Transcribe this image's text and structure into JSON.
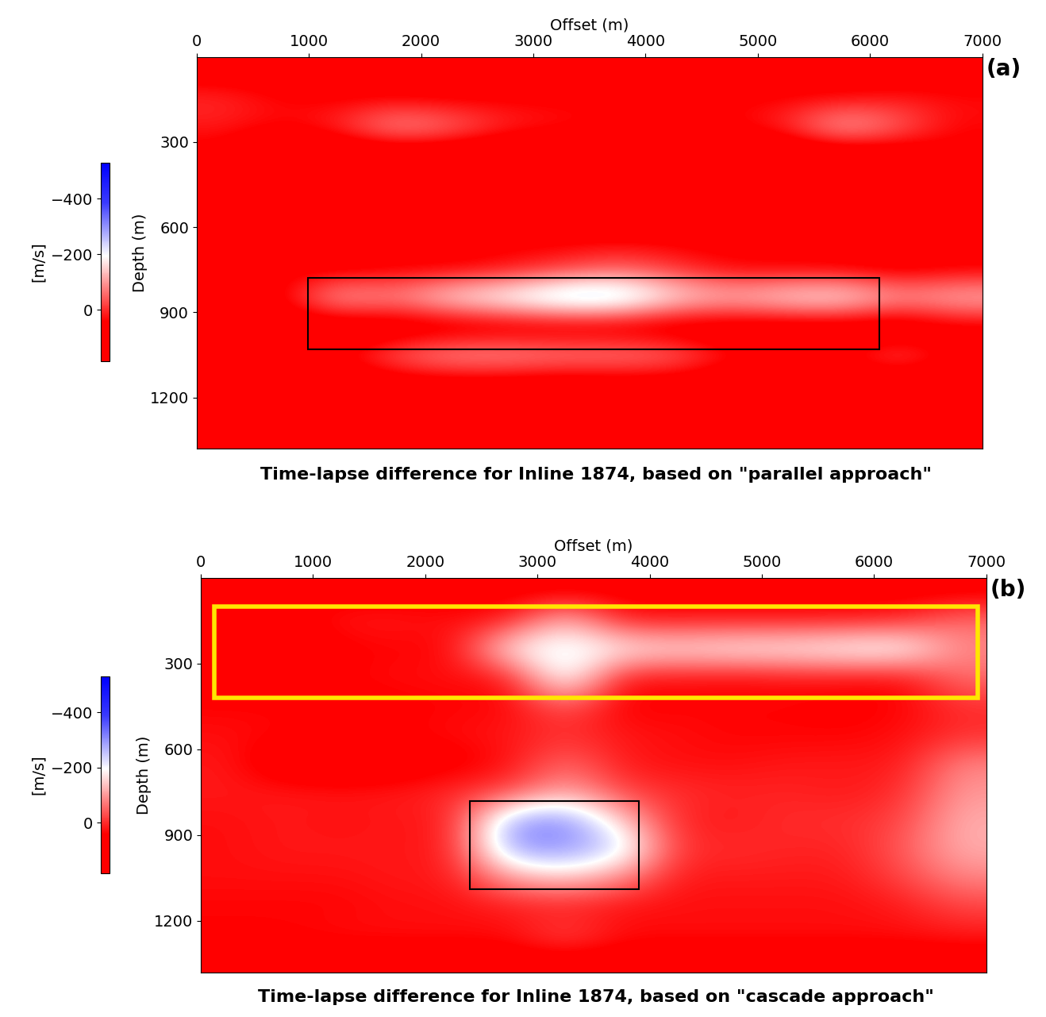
{
  "chart_data": [
    {
      "type": "heatmap",
      "title": "Time-lapse difference for Inline 1874, based on \"parallel approach\"",
      "panel_label": "(a)",
      "xlabel": "Offset (m)",
      "ylabel": "Depth (m)",
      "xlim": [
        0,
        7000
      ],
      "xticks": [
        0,
        1000,
        2000,
        3000,
        4000,
        5000,
        6000,
        7000
      ],
      "ylim": [
        1380,
        0
      ],
      "yticks": [
        300,
        600,
        900,
        1200
      ],
      "x_edges": [
        0,
        500,
        1000,
        1500,
        2000,
        2500,
        3000,
        3500,
        4000,
        4500,
        5000,
        5500,
        6000,
        6500,
        7000
      ],
      "y_edges": [
        0,
        100,
        200,
        300,
        400,
        500,
        600,
        700,
        800,
        900,
        1000,
        1100,
        1200,
        1300,
        1400
      ],
      "cells": [
        [
          80,
          80,
          80,
          80,
          80,
          80,
          80,
          80,
          80,
          80,
          80,
          80,
          80,
          80
        ],
        [
          0,
          40,
          50,
          50,
          60,
          50,
          50,
          50,
          50,
          50,
          40,
          40,
          20,
          30
        ],
        [
          20,
          40,
          0,
          -120,
          -80,
          0,
          20,
          40,
          50,
          40,
          0,
          -150,
          -60,
          40
        ],
        [
          60,
          150,
          150,
          150,
          150,
          150,
          150,
          150,
          150,
          150,
          150,
          150,
          120,
          60
        ],
        [
          80,
          150,
          170,
          170,
          170,
          170,
          170,
          170,
          170,
          170,
          170,
          170,
          150,
          60
        ],
        [
          60,
          120,
          100,
          140,
          140,
          160,
          160,
          170,
          160,
          150,
          140,
          130,
          120,
          60
        ],
        [
          60,
          40,
          80,
          50,
          60,
          40,
          40,
          30,
          40,
          50,
          40,
          60,
          60,
          60
        ],
        [
          80,
          60,
          80,
          60,
          60,
          40,
          0,
          -40,
          0,
          50,
          60,
          60,
          80,
          60
        ],
        [
          80,
          60,
          -150,
          -100,
          -200,
          -250,
          -320,
          -320,
          -200,
          -150,
          -200,
          -220,
          -120,
          -150
        ],
        [
          80,
          100,
          140,
          130,
          130,
          120,
          120,
          120,
          130,
          120,
          130,
          130,
          140,
          80
        ],
        [
          80,
          60,
          40,
          -60,
          -120,
          -120,
          -100,
          -100,
          -80,
          20,
          40,
          40,
          -60,
          60
        ],
        [
          100,
          100,
          120,
          100,
          100,
          100,
          110,
          100,
          100,
          110,
          100,
          120,
          120,
          100
        ],
        [
          120,
          120,
          130,
          110,
          110,
          120,
          120,
          110,
          110,
          120,
          120,
          120,
          130,
          120
        ],
        [
          150,
          150,
          150,
          150,
          150,
          150,
          150,
          150,
          150,
          150,
          150,
          150,
          150,
          150
        ]
      ],
      "colorbar": {
        "label": "[m/s]",
        "range": [
          -530,
          185
        ],
        "ticks": [
          {
            "value": -400,
            "label": "−400"
          },
          {
            "value": -200,
            "label": "−200"
          },
          0
        ]
      },
      "boxes": [
        {
          "x0": 990,
          "x1": 6080,
          "y0": 780,
          "y1": 1030,
          "color": "#000000"
        }
      ]
    },
    {
      "type": "heatmap",
      "title": "Time-lapse difference for Inline 1874, based on \"cascade approach\"",
      "panel_label": "(b)",
      "xlabel": "Offset (m)",
      "ylabel": "Depth (m)",
      "xlim": [
        0,
        7000
      ],
      "xticks": [
        0,
        1000,
        2000,
        3000,
        4000,
        5000,
        6000,
        7000
      ],
      "ylim": [
        1380,
        0
      ],
      "yticks": [
        300,
        600,
        900,
        1200
      ],
      "x_edges": [
        0,
        500,
        1000,
        1500,
        2000,
        2500,
        3000,
        3500,
        4000,
        4500,
        5000,
        5500,
        6000,
        6500,
        7000
      ],
      "y_edges": [
        0,
        100,
        200,
        300,
        400,
        500,
        600,
        700,
        800,
        900,
        1000,
        1100,
        1200,
        1300,
        1400
      ],
      "cells": [
        [
          60,
          60,
          60,
          60,
          60,
          60,
          60,
          60,
          60,
          60,
          60,
          60,
          60,
          60
        ],
        [
          80,
          60,
          20,
          20,
          30,
          20,
          -150,
          20,
          20,
          20,
          20,
          20,
          10,
          -60
        ],
        [
          60,
          80,
          50,
          40,
          40,
          -200,
          -220,
          -200,
          -180,
          -200,
          -200,
          -220,
          -230,
          -80
        ],
        [
          60,
          60,
          40,
          30,
          30,
          30,
          -250,
          30,
          30,
          40,
          30,
          30,
          40,
          -60
        ],
        [
          40,
          40,
          60,
          50,
          40,
          40,
          -40,
          50,
          40,
          40,
          40,
          50,
          40,
          0
        ],
        [
          30,
          40,
          40,
          40,
          30,
          20,
          0,
          20,
          30,
          40,
          40,
          40,
          30,
          0
        ],
        [
          20,
          80,
          100,
          80,
          60,
          30,
          -60,
          20,
          30,
          30,
          20,
          20,
          20,
          -80
        ],
        [
          20,
          20,
          20,
          20,
          0,
          -20,
          -120,
          -20,
          0,
          10,
          10,
          20,
          0,
          -100
        ],
        [
          30,
          20,
          30,
          20,
          20,
          -300,
          -320,
          -150,
          10,
          20,
          0,
          0,
          -20,
          -120
        ],
        [
          30,
          20,
          20,
          20,
          20,
          -300,
          -300,
          -250,
          0,
          0,
          10,
          10,
          -40,
          -120
        ],
        [
          30,
          30,
          30,
          20,
          20,
          -100,
          -150,
          -80,
          20,
          20,
          20,
          20,
          -20,
          -80
        ],
        [
          40,
          40,
          40,
          30,
          30,
          20,
          20,
          30,
          30,
          30,
          30,
          30,
          20,
          -20
        ],
        [
          40,
          40,
          30,
          30,
          30,
          30,
          -30,
          30,
          30,
          30,
          30,
          30,
          30,
          20
        ],
        [
          80,
          80,
          80,
          80,
          80,
          80,
          80,
          80,
          80,
          80,
          80,
          80,
          80,
          80
        ]
      ],
      "colorbar": {
        "label": "[m/s]",
        "range": [
          -530,
          185
        ],
        "ticks": [
          {
            "value": -400,
            "label": "−400"
          },
          {
            "value": -200,
            "label": "−200"
          },
          0
        ]
      },
      "boxes": [
        {
          "x0": 120,
          "x1": 6920,
          "y0": 100,
          "y1": 420,
          "color": "#ffe600"
        },
        {
          "x0": 2400,
          "x1": 3900,
          "y0": 780,
          "y1": 1090,
          "color": "#000000"
        }
      ]
    }
  ]
}
